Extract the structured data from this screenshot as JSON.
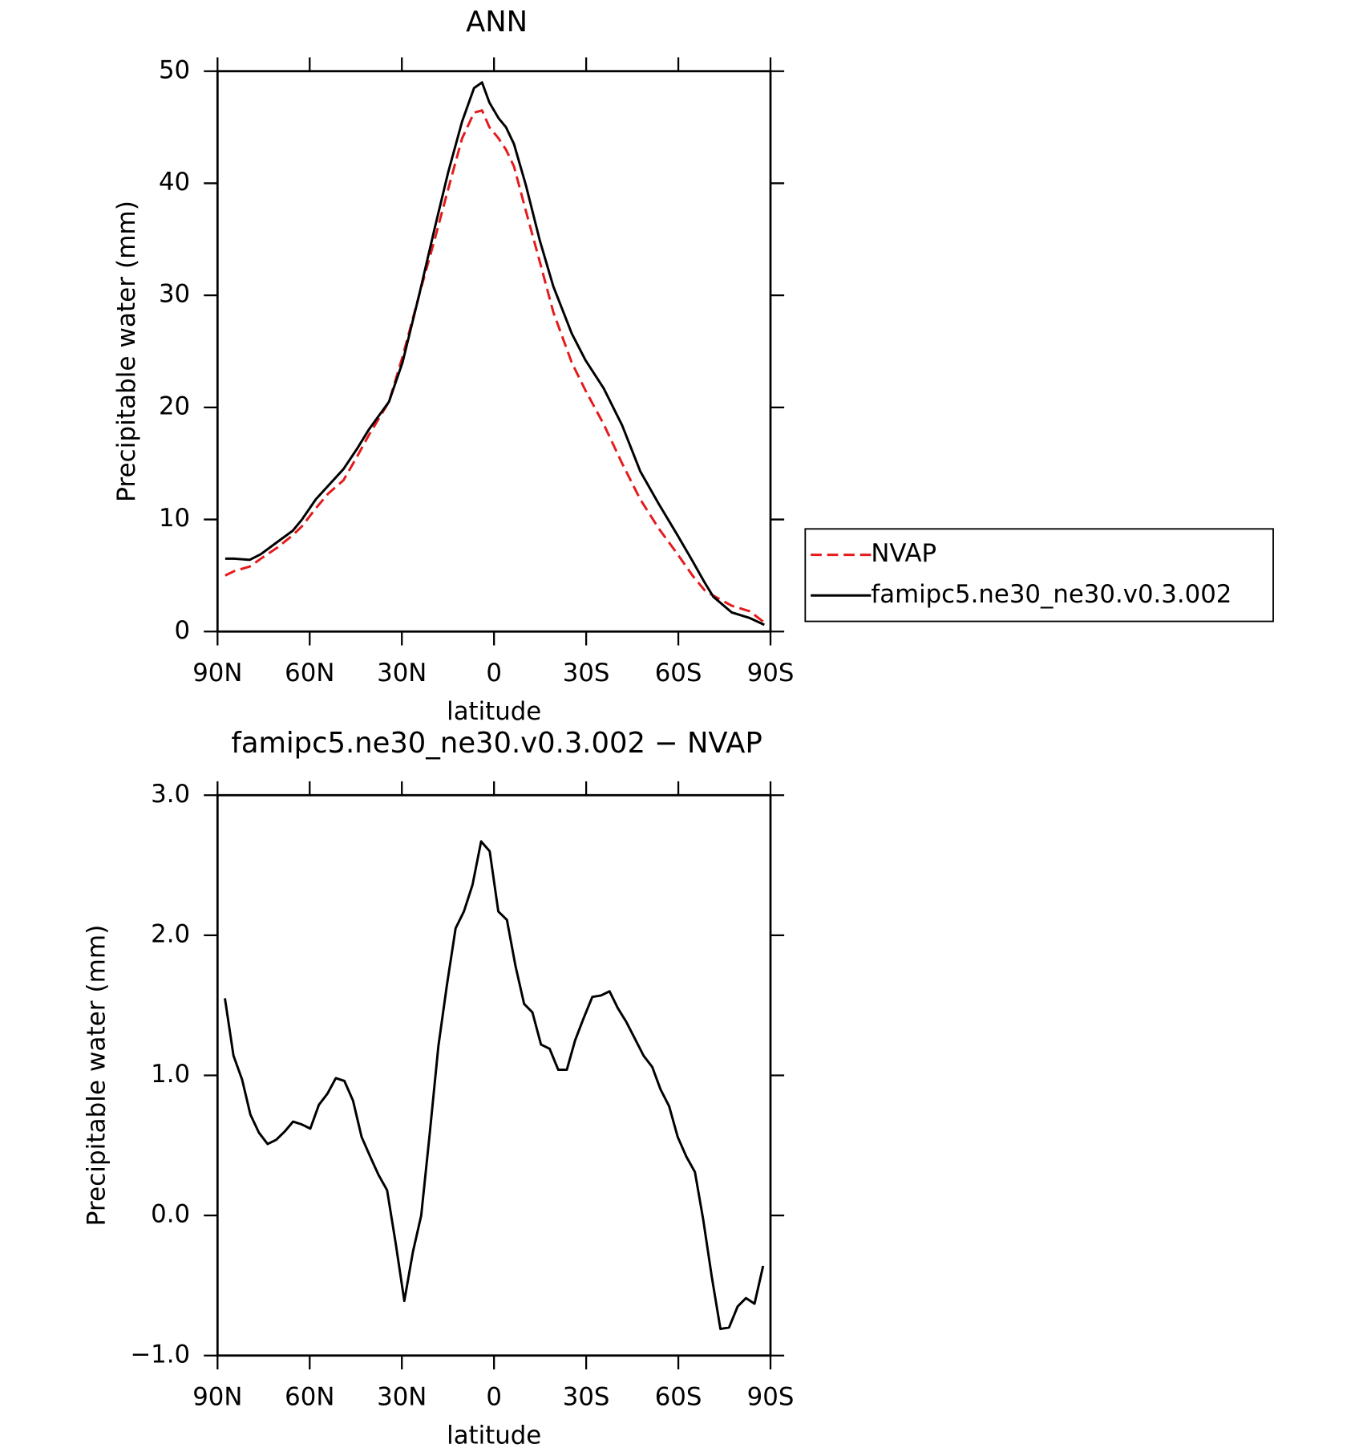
{
  "chart_data": [
    {
      "type": "line",
      "title": "ANN",
      "xlabel": "latitude",
      "ylabel": "Precipitable water (mm)",
      "x": [
        87.5,
        84.5,
        79.5,
        75.9,
        70.5,
        65.5,
        62.5,
        58,
        54,
        49,
        44.6,
        40.8,
        34.2,
        29.8,
        24.4,
        19.3,
        14.9,
        10.4,
        6.5,
        3.9,
        1.5,
        -1.5,
        -3.9,
        -6.5,
        -10.4,
        -14.9,
        -19.3,
        -25.3,
        -29.8,
        -35.7,
        -41.7,
        -47.6,
        -53.6,
        -59.5,
        -64.6,
        -68.5,
        -71.4,
        -77.4,
        -83.3,
        -88
      ],
      "series": [
        {
          "name": "NVAP",
          "color": "#e41a1c",
          "dash": true,
          "values": [
            5,
            5.4,
            5.8,
            6.5,
            7.5,
            8.6,
            9.4,
            11,
            12.3,
            13.5,
            15.6,
            17.5,
            20.5,
            24.5,
            30,
            35,
            39.5,
            44,
            46.3,
            46.5,
            45,
            44,
            43,
            41.5,
            37.5,
            33,
            28.5,
            24,
            21.5,
            18.5,
            15,
            11.8,
            9.2,
            7,
            5,
            3.7,
            3.2,
            2.3,
            1.8,
            0.8
          ]
        },
        {
          "name": "famipc5.ne30_ne30.v0.3.002",
          "color": "#000000",
          "dash": false,
          "values": [
            6.5,
            6.5,
            6.4,
            6.9,
            8,
            9,
            10,
            11.8,
            13,
            14.5,
            16.3,
            18,
            20.5,
            24,
            30,
            36,
            41,
            45.5,
            48.5,
            49,
            47.2,
            45.8,
            45,
            43.5,
            39.8,
            34.9,
            30.8,
            26.6,
            24.2,
            21.7,
            18.4,
            14.3,
            11.4,
            8.7,
            6.3,
            4.4,
            3.1,
            1.7,
            1.2,
            0.6
          ]
        }
      ],
      "xlim": [
        90,
        -90
      ],
      "xticks": [
        {
          "value": 90,
          "label": "90N"
        },
        {
          "value": 60,
          "label": "60N"
        },
        {
          "value": 30,
          "label": "30N"
        },
        0,
        {
          "value": -30,
          "label": "30S"
        },
        {
          "value": -60,
          "label": "60S"
        },
        {
          "value": -90,
          "label": "90S"
        }
      ],
      "ylim": [
        0,
        50
      ],
      "yticks": [
        0,
        10,
        20,
        30,
        40,
        50
      ],
      "legend": "right"
    },
    {
      "type": "line",
      "title": "famipc5.ne30_ne30.v0.3.002 − NVAP",
      "xlabel": "latitude",
      "ylabel": "Precipitable water (mm)",
      "x": [
        87.6,
        84.8,
        82.0,
        79.3,
        76.5,
        73.7,
        70.9,
        68.1,
        65.4,
        62.6,
        59.8,
        57.0,
        54.2,
        51.5,
        48.7,
        45.9,
        43.1,
        40.3,
        37.6,
        34.8,
        32.0,
        29.2,
        26.4,
        23.7,
        20.9,
        18.1,
        15.3,
        12.5,
        9.8,
        7.0,
        4.2,
        1.4,
        -1.4,
        -4.2,
        -7.0,
        -9.8,
        -12.5,
        -15.3,
        -18.1,
        -20.9,
        -23.7,
        -26.4,
        -29.2,
        -32.0,
        -34.8,
        -37.6,
        -40.3,
        -43.1,
        -45.9,
        -48.7,
        -51.5,
        -54.2,
        -57.0,
        -59.8,
        -62.6,
        -65.4,
        -68.1,
        -70.9,
        -73.7,
        -76.5,
        -79.3,
        -82.0,
        -84.8,
        -87.6
      ],
      "series": [
        {
          "name": "famipc5.ne30_ne30.v0.3.002 − NVAP",
          "color": "#000000",
          "dash": false,
          "values": [
            1.55,
            1.14,
            0.97,
            0.72,
            0.59,
            0.51,
            0.54,
            0.6,
            0.67,
            0.65,
            0.62,
            0.79,
            0.87,
            0.98,
            0.96,
            0.82,
            0.56,
            0.42,
            0.29,
            0.18,
            -0.2,
            -0.61,
            -0.26,
            0.0,
            0.59,
            1.21,
            1.65,
            2.05,
            2.17,
            2.36,
            2.67,
            2.6,
            2.17,
            2.11,
            1.78,
            1.51,
            1.45,
            1.22,
            1.19,
            1.04,
            1.04,
            1.25,
            1.41,
            1.56,
            1.57,
            1.6,
            1.48,
            1.38,
            1.26,
            1.14,
            1.06,
            0.9,
            0.78,
            0.56,
            0.42,
            0.31,
            -0.03,
            -0.44,
            -0.81,
            -0.8,
            -0.65,
            -0.59,
            -0.63,
            -0.36
          ]
        }
      ],
      "xlim": [
        90,
        -90
      ],
      "xticks": [
        {
          "value": 90,
          "label": "90N"
        },
        {
          "value": 60,
          "label": "60N"
        },
        {
          "value": 30,
          "label": "30N"
        },
        0,
        {
          "value": -30,
          "label": "30S"
        },
        {
          "value": -60,
          "label": "60S"
        },
        {
          "value": -90,
          "label": "90S"
        }
      ],
      "ylim": [
        -1,
        3
      ],
      "yticks": [
        {
          "value": -1,
          "label": "−1.0"
        },
        {
          "value": 0,
          "label": "0.0"
        },
        {
          "value": 1,
          "label": "1.0"
        },
        {
          "value": 2,
          "label": "2.0"
        },
        {
          "value": 3,
          "label": "3.0"
        }
      ]
    }
  ]
}
